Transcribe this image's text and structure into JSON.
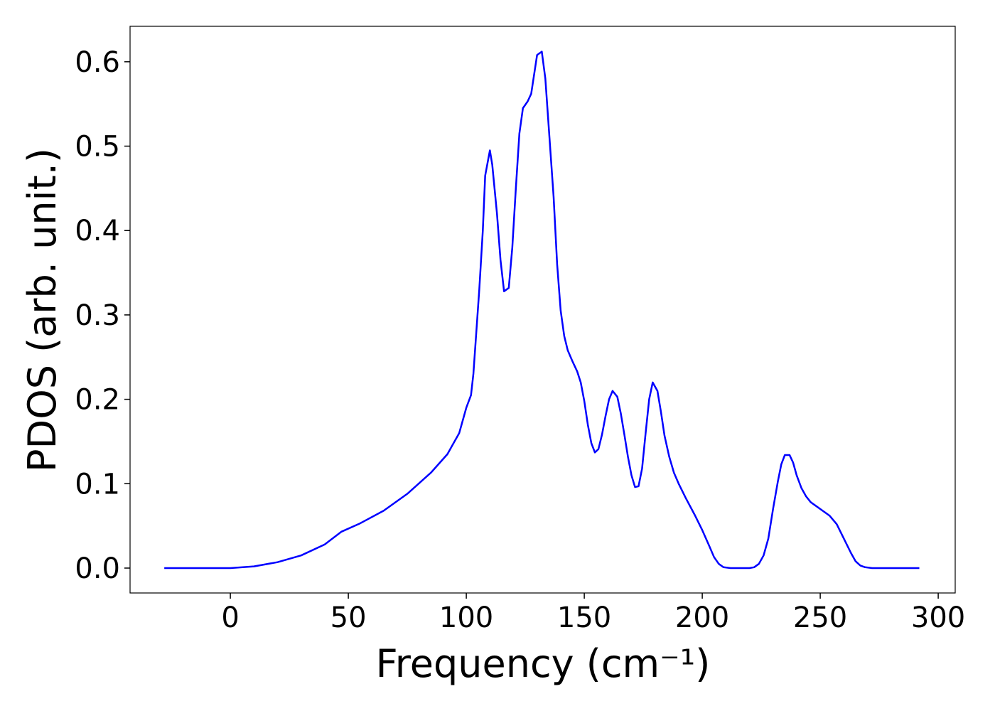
{
  "chart_data": {
    "type": "line",
    "xlabel": "Frequency (cm⁻¹)",
    "ylabel": "PDOS (arb. unit.)",
    "x": [
      -28,
      -10,
      0,
      10,
      20,
      30,
      40,
      47,
      55,
      65,
      75,
      85,
      92,
      97,
      100,
      102,
      103,
      104,
      105.5,
      107,
      108,
      110,
      111,
      113,
      114.5,
      116,
      118,
      119.5,
      121,
      122.5,
      124,
      126,
      127.5,
      130,
      132,
      133.5,
      135,
      137,
      138.5,
      140,
      141.5,
      143,
      145,
      147,
      148.5,
      150,
      151.5,
      153,
      154.5,
      156,
      157.5,
      159,
      160.5,
      162,
      164,
      165.5,
      167,
      168.5,
      170,
      171.5,
      173,
      174.5,
      176,
      177.5,
      179,
      181,
      182.5,
      184,
      186,
      188,
      190,
      193,
      197,
      200,
      203,
      205,
      207,
      209,
      212,
      220,
      222,
      224,
      226,
      228,
      230,
      232,
      233.5,
      235,
      237,
      238.5,
      240,
      242,
      244,
      246,
      250,
      254,
      257,
      260,
      263,
      265,
      267,
      269,
      272,
      292
    ],
    "series": [
      {
        "name": "PDOS",
        "color": "#0000ff",
        "values": [
          0,
          0,
          0,
          0.002,
          0.007,
          0.015,
          0.028,
          0.043,
          0.053,
          0.068,
          0.088,
          0.113,
          0.135,
          0.16,
          0.19,
          0.205,
          0.23,
          0.27,
          0.33,
          0.4,
          0.465,
          0.495,
          0.478,
          0.42,
          0.365,
          0.328,
          0.332,
          0.38,
          0.45,
          0.515,
          0.545,
          0.553,
          0.562,
          0.608,
          0.612,
          0.58,
          0.52,
          0.44,
          0.36,
          0.305,
          0.275,
          0.258,
          0.245,
          0.233,
          0.22,
          0.198,
          0.17,
          0.148,
          0.137,
          0.141,
          0.158,
          0.18,
          0.2,
          0.21,
          0.203,
          0.183,
          0.158,
          0.132,
          0.11,
          0.096,
          0.097,
          0.118,
          0.16,
          0.2,
          0.22,
          0.21,
          0.185,
          0.157,
          0.132,
          0.113,
          0.1,
          0.083,
          0.062,
          0.045,
          0.026,
          0.013,
          0.005,
          0.001,
          0,
          0,
          0.001,
          0.005,
          0.015,
          0.035,
          0.07,
          0.102,
          0.123,
          0.134,
          0.134,
          0.125,
          0.11,
          0.095,
          0.085,
          0.078,
          0.07,
          0.062,
          0.052,
          0.035,
          0.018,
          0.008,
          0.003,
          0.001,
          0,
          0
        ]
      }
    ],
    "xlim": [
      -42.5,
      307.2
    ],
    "ylim": [
      -0.0295,
      0.642
    ],
    "xticks": [
      0,
      50,
      100,
      150,
      200,
      250,
      300
    ],
    "yticks": [
      {
        "value": 0,
        "label": "0.0"
      },
      0.1,
      0.2,
      0.3,
      0.4,
      0.5,
      0.6
    ]
  }
}
